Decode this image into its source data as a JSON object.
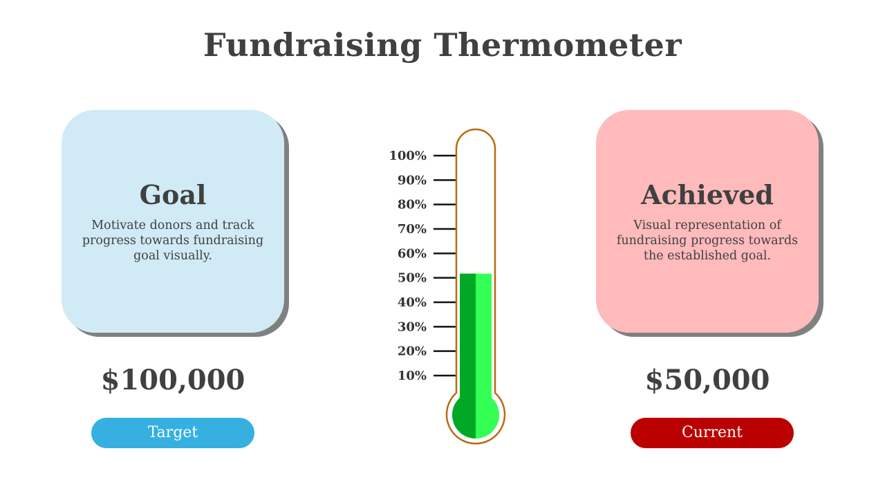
{
  "title": "Fundraising Thermometer",
  "goal": {
    "heading": "Goal",
    "description": "Motivate donors and track progress towards fundraising goal visually.",
    "amount": "$100,000",
    "pill_label": "Target",
    "card_color": "#d0ebf5",
    "pill_color": "#35b0e0"
  },
  "achieved": {
    "heading": "Achieved",
    "description": "Visual representation of fundraising progress towards the established goal.",
    "amount": "$50,000",
    "pill_label": "Current",
    "card_color": "#ffbbbb",
    "pill_color": "#bb0000"
  },
  "thermometer": {
    "scale_labels": [
      "100%",
      "90%",
      "80%",
      "70%",
      "60%",
      "50%",
      "40%",
      "30%",
      "20%",
      "10%"
    ],
    "fill_percent": 50,
    "fill_colors": [
      "#00a826",
      "#33ff55"
    ],
    "outline_color": "#b86a10"
  }
}
